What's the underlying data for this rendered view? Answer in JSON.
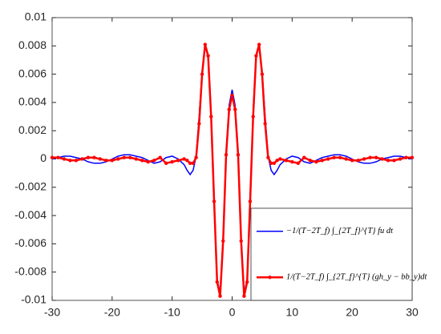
{
  "chart_data": {
    "type": "line",
    "x": [
      -30,
      -29,
      -28,
      -27,
      -26,
      -25,
      -24,
      -23,
      -22,
      -21,
      -20,
      -19,
      -18,
      -17,
      -16,
      -15,
      -14,
      -13,
      -12,
      -11,
      -10,
      -9,
      -8,
      -7.5,
      -7,
      -6.5,
      -6,
      -5.5,
      -5,
      -4.5,
      -4,
      -3.5,
      -3,
      -2.5,
      -2,
      -1.5,
      -1,
      -0.5,
      0,
      0.5,
      1,
      1.5,
      2,
      2.5,
      3,
      3.5,
      4,
      4.5,
      5,
      5.5,
      6,
      6.5,
      7,
      7.5,
      8,
      9,
      10,
      11,
      12,
      13,
      14,
      15,
      16,
      17,
      18,
      19,
      20,
      21,
      22,
      23,
      24,
      25,
      26,
      27,
      28,
      29,
      30
    ],
    "series": [
      {
        "name": "−1/(T−2T_f) ∫_{2T_f}^{T} fu dt",
        "color": "#0000ff",
        "marker": false,
        "values": [
          0,
          0.0001,
          0.0002,
          0.0002,
          0.0001,
          0,
          -0.0002,
          -0.0003,
          -0.0003,
          -0.0002,
          0,
          0.0002,
          0.0003,
          0.0003,
          0.0002,
          0.0001,
          -0.0001,
          -0.0003,
          -0.0002,
          0.0001,
          0.0002,
          0,
          -0.0004,
          -0.0008,
          -0.0011,
          -0.0008,
          0.0002,
          0.003,
          0.0062,
          0.008,
          0.0072,
          0.003,
          -0.003,
          -0.0085,
          -0.0095,
          -0.0055,
          0.0005,
          0.0038,
          0.0049,
          0.0038,
          0.0005,
          -0.0055,
          -0.0095,
          -0.0085,
          -0.003,
          0.003,
          0.0072,
          0.008,
          0.0062,
          0.003,
          0.0002,
          -0.0008,
          -0.0011,
          -0.0008,
          -0.0004,
          0,
          0.0002,
          0.0001,
          -0.0002,
          -0.0003,
          -0.0001,
          0.0001,
          0.0002,
          0.0003,
          0.0003,
          0.0002,
          0,
          -0.0002,
          -0.0003,
          -0.0003,
          -0.0002,
          0,
          0.0001,
          0.0002,
          0.0002,
          0.0001,
          0
        ]
      },
      {
        "name": "1/(T−2T_f) ∫_{2T_f}^{T} (gh_y − bb_y)dt",
        "color": "#ff0000",
        "marker": true,
        "values": [
          0.0001,
          0.0001,
          0,
          -0.0001,
          -0.0001,
          0,
          0.0001,
          0.0001,
          0,
          -0.0001,
          -0.0001,
          0,
          0.0001,
          0.0001,
          0,
          -0.0001,
          -0.0002,
          -0.0001,
          0.0001,
          -0.0003,
          -0.0002,
          -0.0001,
          0,
          -0.0001,
          -0.0003,
          -0.0003,
          0.0001,
          0.0025,
          0.006,
          0.0081,
          0.0073,
          0.003,
          -0.003,
          -0.0087,
          -0.0097,
          -0.0058,
          0.0003,
          0.0035,
          0.0045,
          0.0035,
          0.0003,
          -0.0058,
          -0.0097,
          -0.0087,
          -0.003,
          0.003,
          0.0073,
          0.0081,
          0.006,
          0.0025,
          0.0001,
          -0.0003,
          -0.0003,
          -0.0001,
          0,
          -0.0001,
          -0.0002,
          -0.0003,
          0.0001,
          -0.0001,
          -0.0002,
          -0.0001,
          0,
          0.0001,
          0.0001,
          0,
          -0.0001,
          -0.0001,
          0,
          0.0001,
          0.0001,
          0,
          -0.0001,
          -0.0001,
          0,
          0.0001,
          0.0001
        ]
      }
    ],
    "xlim": [
      -30,
      30
    ],
    "xticks": [
      -30,
      -20,
      -10,
      0,
      10,
      20,
      30
    ],
    "ylim": [
      -0.01,
      0.01
    ],
    "yticks": [
      -0.01,
      -0.008,
      -0.006,
      -0.004,
      -0.002,
      0,
      0.002,
      0.004,
      0.006,
      0.008,
      0.01
    ],
    "legend": "lower right"
  }
}
